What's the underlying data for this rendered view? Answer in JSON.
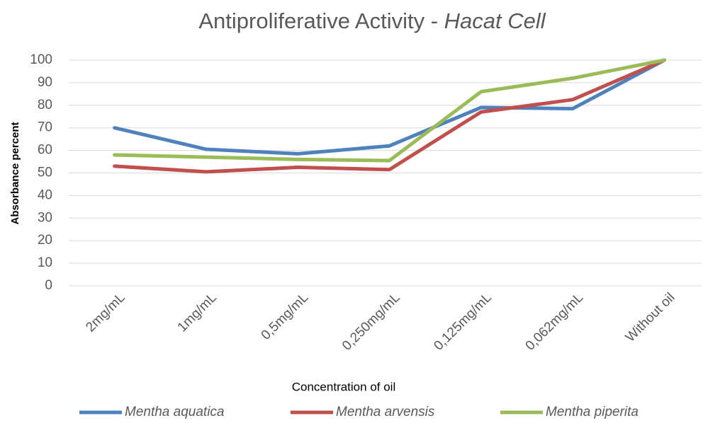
{
  "chart_data": {
    "type": "line",
    "title": [
      "Antiproliferative Activity -",
      "Hacat Cell"
    ],
    "x_label": "Concentration of oil",
    "y_label": "Absorbance percent",
    "categories": [
      "2mg/mL",
      "1mg/mL",
      "0,5mg/mL",
      "0,250mg/mL",
      "0,125mg/mL",
      "0,062mg/mL",
      "Without oil"
    ],
    "series": [
      {
        "name": "Mentha aquatica",
        "color": "#4f81bd",
        "values": [
          70,
          60.5,
          58.5,
          62,
          79,
          78.5,
          100
        ]
      },
      {
        "name": "Mentha arvensis",
        "color": "#c0504d",
        "values": [
          53,
          50.5,
          52.5,
          51.5,
          77,
          82.5,
          100
        ]
      },
      {
        "name": "Mentha piperita",
        "color": "#9bbb59",
        "values": [
          58,
          57,
          56,
          55.5,
          86,
          92,
          100
        ]
      }
    ],
    "ylim": [
      0,
      100
    ],
    "yticks": [
      0,
      10,
      20,
      30,
      40,
      50,
      60,
      70,
      80,
      90,
      100
    ],
    "grid": true,
    "legend": "bottom"
  }
}
